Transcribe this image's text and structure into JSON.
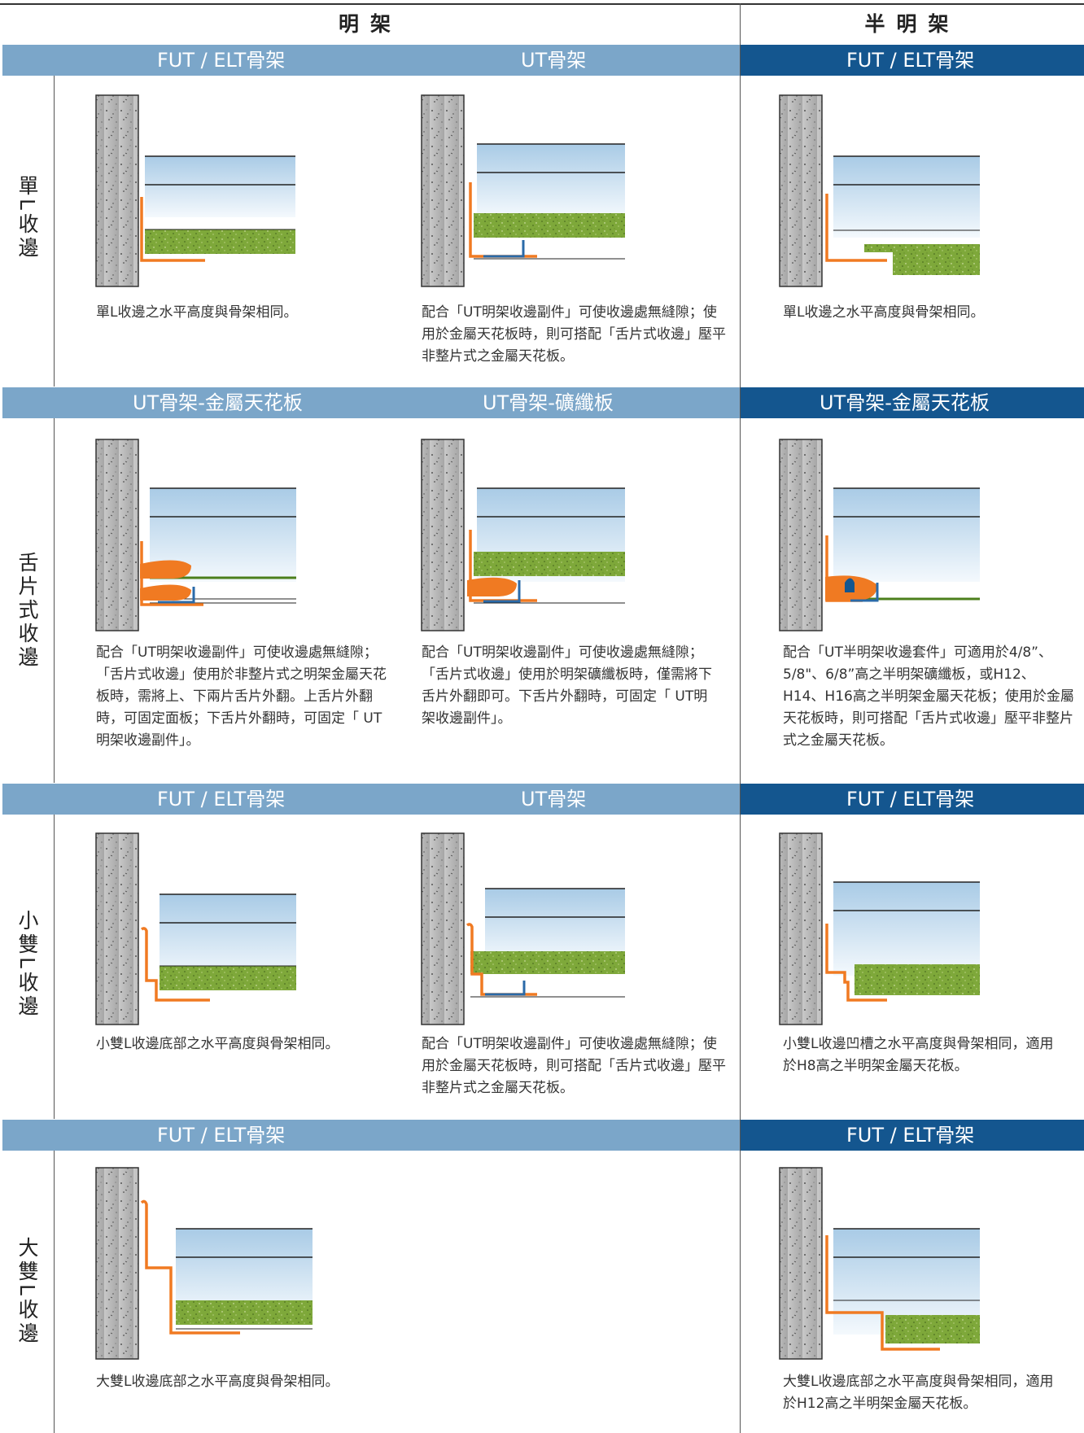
{
  "header": {
    "exposed": "明架",
    "semi_exposed": "半明架"
  },
  "sections": [
    {
      "row_label": "單L收邊",
      "bands": [
        "FUT / ELT骨架",
        "UT骨架",
        "FUT / ELT骨架"
      ],
      "captions": [
        "單L收邊之水平高度與骨架相同。",
        "配合「UT明架收邊副件」可使收邊處無縫隙；使用於金屬天花板時，則可搭配「舌片式收邊」壓平非整片式之金屬天花板。",
        "單L收邊之水平高度與骨架相同。"
      ]
    },
    {
      "row_label": "舌片式收邊",
      "bands": [
        "UT骨架-金屬天花板",
        "UT骨架-礦纖板",
        "UT骨架-金屬天花板"
      ],
      "captions": [
        "配合「UT明架收邊副件」可使收邊處無縫隙；「舌片式收邊」使用於非整片式之明架金屬天花板時，需將上、下兩片舌片外翻。上舌片外翻時，可固定面板；下舌片外翻時，可固定「 UT明架收邊副件」。",
        "配合「UT明架收邊副件」可使收邊處無縫隙；「舌片式收邊」使用於明架礦纖板時，僅需將下舌片外翻即可。下舌片外翻時，可固定「 UT明架收邊副件」。",
        "配合「UT半明架收邊套件」可適用於4/8”、5/8\"、6/8”高之半明架礦纖板，或H12、H14、H16高之半明架金屬天花板；使用於金屬天花板時，則可搭配「舌片式收邊」壓平非整片式之金屬天花板。"
      ]
    },
    {
      "row_label": "小雙L收邊",
      "bands": [
        "FUT / ELT骨架",
        "UT骨架",
        "FUT / ELT骨架"
      ],
      "captions": [
        "小雙L收邊底部之水平高度與骨架相同。",
        "配合「UT明架收邊副件」可使收邊處無縫隙；使用於金屬天花板時，則可搭配「舌片式收邊」壓平非整片式之金屬天花板。",
        "小雙L收邊凹槽之水平高度與骨架相同，適用於H8高之半明架金屬天花板。"
      ]
    },
    {
      "row_label": "大雙L收邊",
      "bands": [
        "FUT / ELT骨架",
        "FUT / ELT骨架"
      ],
      "captions": [
        "大雙L收邊底部之水平高度與骨架相同。",
        "大雙L收邊底部之水平高度與骨架相同，適用於H12高之半明架金屬天花板。"
      ]
    }
  ],
  "colors": {
    "band_light": "#7ba6c9",
    "band_dark": "#14568f",
    "trim_orange": "#f07a22",
    "runner_blue": "#2a6aa8",
    "board_green": "#6f9a2e",
    "wall_gray": "#b9b9b9"
  }
}
